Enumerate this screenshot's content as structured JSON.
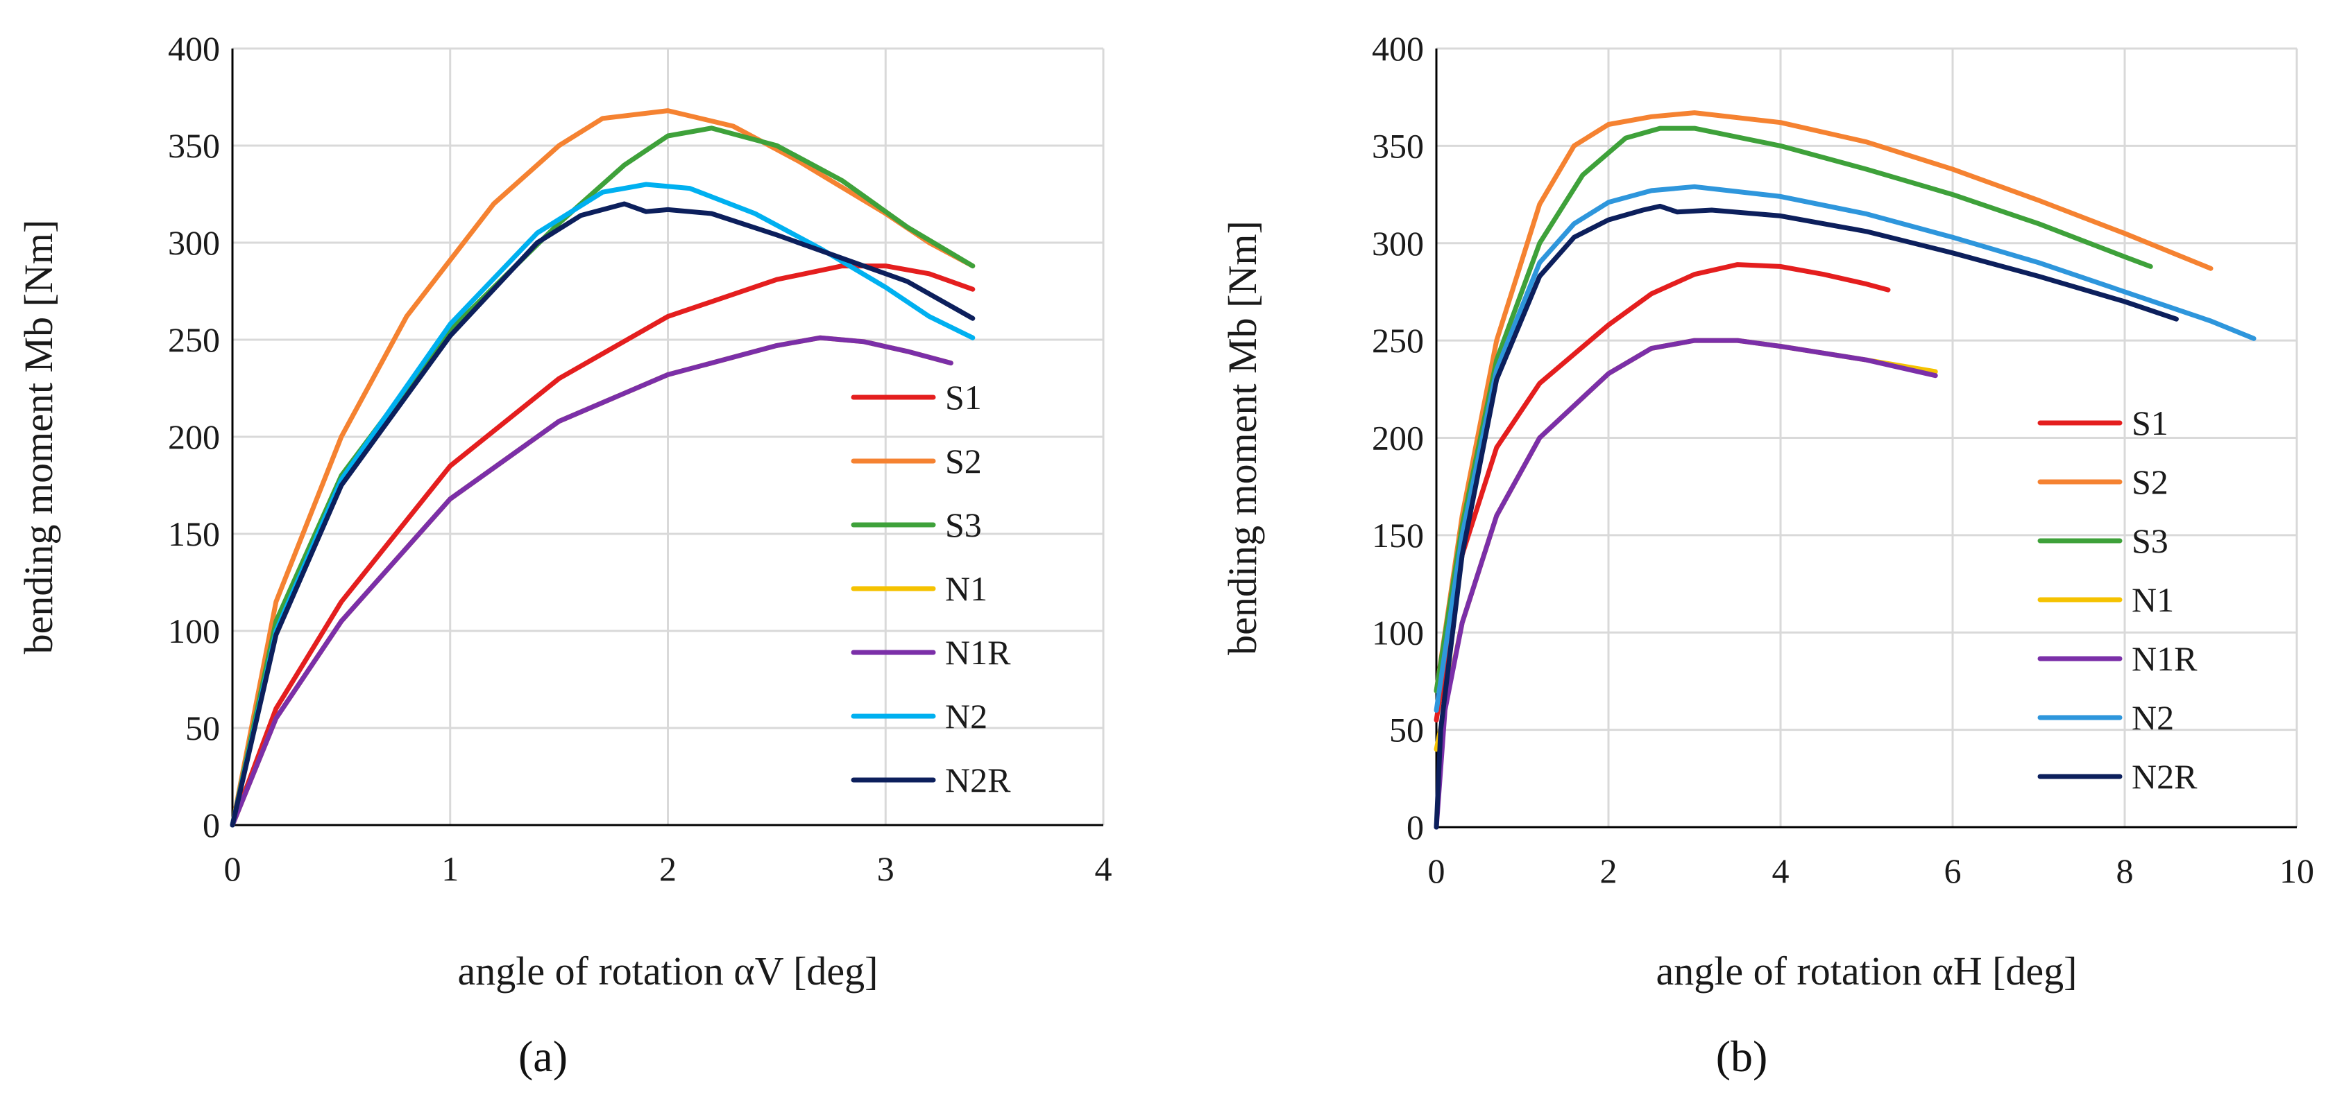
{
  "chart_data": [
    {
      "type": "line",
      "panel_label": "(a)",
      "xlabel": "angle of rotation αV [deg]",
      "ylabel": "bending moment Mb [Nm]",
      "xlim": [
        0,
        4
      ],
      "ylim": [
        0,
        400
      ],
      "xticks": [
        "0",
        "1",
        "2",
        "3",
        "4"
      ],
      "yticks": [
        "0",
        "50",
        "100",
        "150",
        "200",
        "250",
        "300",
        "350",
        "400"
      ],
      "grid": true,
      "legend_position": "lower-right",
      "series": [
        {
          "name": "S1",
          "color": "#e41e1e",
          "points": [
            [
              0,
              0
            ],
            [
              0.2,
              60
            ],
            [
              0.5,
              115
            ],
            [
              1,
              185
            ],
            [
              1.5,
              230
            ],
            [
              2,
              262
            ],
            [
              2.5,
              281
            ],
            [
              2.8,
              288
            ],
            [
              3.0,
              288
            ],
            [
              3.2,
              284
            ],
            [
              3.4,
              276
            ]
          ]
        },
        {
          "name": "S2",
          "color": "#f58231",
          "points": [
            [
              0,
              0
            ],
            [
              0.2,
              115
            ],
            [
              0.5,
              200
            ],
            [
              0.8,
              262
            ],
            [
              1.2,
              320
            ],
            [
              1.5,
              350
            ],
            [
              1.7,
              364
            ],
            [
              2.0,
              368
            ],
            [
              2.3,
              360
            ],
            [
              2.6,
              342
            ],
            [
              3.0,
              315
            ],
            [
              3.2,
              300
            ],
            [
              3.4,
              288
            ]
          ]
        },
        {
          "name": "S3",
          "color": "#3ea13a",
          "points": [
            [
              0,
              0
            ],
            [
              0.2,
              105
            ],
            [
              0.5,
              180
            ],
            [
              1,
              255
            ],
            [
              1.5,
              310
            ],
            [
              1.8,
              340
            ],
            [
              2.0,
              355
            ],
            [
              2.2,
              359
            ],
            [
              2.5,
              350
            ],
            [
              2.8,
              332
            ],
            [
              3.1,
              308
            ],
            [
              3.4,
              288
            ]
          ]
        },
        {
          "name": "N1",
          "color": "#f5c200",
          "points": [
            [
              0,
              0
            ],
            [
              0.2,
              55
            ],
            [
              0.5,
              105
            ],
            [
              1,
              168
            ],
            [
              1.5,
              208
            ],
            [
              2,
              232
            ],
            [
              2.5,
              247
            ],
            [
              2.7,
              251
            ],
            [
              2.9,
              249
            ],
            [
              3.1,
              244
            ],
            [
              3.3,
              238
            ]
          ]
        },
        {
          "name": "N1R",
          "color": "#7b2fa8",
          "points": [
            [
              0,
              0
            ],
            [
              0.2,
              55
            ],
            [
              0.5,
              105
            ],
            [
              1,
              168
            ],
            [
              1.5,
              208
            ],
            [
              2,
              232
            ],
            [
              2.5,
              247
            ],
            [
              2.7,
              251
            ],
            [
              2.9,
              249
            ],
            [
              3.1,
              244
            ],
            [
              3.3,
              238
            ]
          ]
        },
        {
          "name": "N2",
          "color": "#00b0f0",
          "points": [
            [
              0,
              0
            ],
            [
              0.2,
              100
            ],
            [
              0.5,
              178
            ],
            [
              1,
              258
            ],
            [
              1.4,
              305
            ],
            [
              1.7,
              326
            ],
            [
              1.9,
              330
            ],
            [
              2.1,
              328
            ],
            [
              2.4,
              315
            ],
            [
              2.7,
              297
            ],
            [
              3.0,
              277
            ],
            [
              3.2,
              262
            ],
            [
              3.4,
              251
            ]
          ]
        },
        {
          "name": "N2R",
          "color": "#0c1f5c",
          "points": [
            [
              0,
              0
            ],
            [
              0.2,
              98
            ],
            [
              0.5,
              175
            ],
            [
              1,
              252
            ],
            [
              1.4,
              300
            ],
            [
              1.6,
              314
            ],
            [
              1.8,
              320
            ],
            [
              1.9,
              316
            ],
            [
              2.0,
              317
            ],
            [
              2.2,
              315
            ],
            [
              2.5,
              304
            ],
            [
              2.8,
              292
            ],
            [
              3.1,
              280
            ],
            [
              3.4,
              261
            ]
          ]
        }
      ]
    },
    {
      "type": "line",
      "panel_label": "(b)",
      "xlabel": "angle of rotation αH [deg]",
      "ylabel": "bending moment Mb [Nm]",
      "xlim": [
        0,
        10
      ],
      "ylim": [
        0,
        400
      ],
      "xticks": [
        "0",
        "2",
        "4",
        "6",
        "8",
        "10"
      ],
      "yticks": [
        "0",
        "50",
        "100",
        "150",
        "200",
        "250",
        "300",
        "350",
        "400"
      ],
      "grid": true,
      "legend_position": "lower-right",
      "series": [
        {
          "name": "S1",
          "color": "#e41e1e",
          "points": [
            [
              0,
              55
            ],
            [
              0.3,
              140
            ],
            [
              0.7,
              195
            ],
            [
              1.2,
              228
            ],
            [
              2,
              258
            ],
            [
              2.5,
              274
            ],
            [
              3,
              284
            ],
            [
              3.5,
              289
            ],
            [
              4,
              288
            ],
            [
              4.5,
              284
            ],
            [
              5,
              279
            ],
            [
              5.25,
              276
            ]
          ]
        },
        {
          "name": "S2",
          "color": "#f58231",
          "points": [
            [
              0,
              70
            ],
            [
              0.3,
              160
            ],
            [
              0.7,
              250
            ],
            [
              1.2,
              320
            ],
            [
              1.6,
              350
            ],
            [
              2,
              361
            ],
            [
              2.5,
              365
            ],
            [
              3,
              367
            ],
            [
              4,
              362
            ],
            [
              5,
              352
            ],
            [
              6,
              338
            ],
            [
              7,
              322
            ],
            [
              8,
              305
            ],
            [
              9,
              287
            ]
          ]
        },
        {
          "name": "S3",
          "color": "#3ea13a",
          "points": [
            [
              0,
              70
            ],
            [
              0.3,
              155
            ],
            [
              0.7,
              240
            ],
            [
              1.2,
              300
            ],
            [
              1.7,
              335
            ],
            [
              2.2,
              354
            ],
            [
              2.6,
              359
            ],
            [
              3,
              359
            ],
            [
              4,
              350
            ],
            [
              5,
              338
            ],
            [
              6,
              325
            ],
            [
              7,
              310
            ],
            [
              8,
              293
            ],
            [
              8.3,
              288
            ]
          ]
        },
        {
          "name": "N1",
          "color": "#f5c200",
          "points": [
            [
              0,
              40
            ],
            [
              0.3,
              105
            ],
            [
              0.7,
              160
            ],
            [
              1.2,
              200
            ],
            [
              2,
              233
            ],
            [
              2.5,
              246
            ],
            [
              3,
              250
            ],
            [
              3.5,
              250
            ],
            [
              4,
              247
            ],
            [
              5,
              240
            ],
            [
              5.8,
              234
            ]
          ]
        },
        {
          "name": "N1R",
          "color": "#7b2fa8",
          "points": [
            [
              0,
              0
            ],
            [
              0.1,
              60
            ],
            [
              0.3,
              105
            ],
            [
              0.7,
              160
            ],
            [
              1.2,
              200
            ],
            [
              2,
              233
            ],
            [
              2.5,
              246
            ],
            [
              3,
              250
            ],
            [
              3.5,
              250
            ],
            [
              4,
              247
            ],
            [
              5,
              240
            ],
            [
              5.8,
              232
            ]
          ]
        },
        {
          "name": "N2",
          "color": "#2e96dc",
          "points": [
            [
              0,
              60
            ],
            [
              0.3,
              150
            ],
            [
              0.7,
              235
            ],
            [
              1.2,
              290
            ],
            [
              1.6,
              310
            ],
            [
              2,
              321
            ],
            [
              2.5,
              327
            ],
            [
              3,
              329
            ],
            [
              4,
              324
            ],
            [
              5,
              315
            ],
            [
              6,
              303
            ],
            [
              7,
              290
            ],
            [
              8,
              275
            ],
            [
              9,
              260
            ],
            [
              9.5,
              251
            ]
          ]
        },
        {
          "name": "N2R",
          "color": "#0c1f5c",
          "points": [
            [
              0,
              0
            ],
            [
              0.05,
              50
            ],
            [
              0.3,
              140
            ],
            [
              0.7,
              230
            ],
            [
              1.2,
              283
            ],
            [
              1.6,
              303
            ],
            [
              2,
              312
            ],
            [
              2.4,
              317
            ],
            [
              2.6,
              319
            ],
            [
              2.8,
              316
            ],
            [
              3.2,
              317
            ],
            [
              4,
              314
            ],
            [
              5,
              306
            ],
            [
              6,
              295
            ],
            [
              7,
              283
            ],
            [
              8,
              270
            ],
            [
              8.6,
              261
            ]
          ]
        }
      ]
    }
  ]
}
